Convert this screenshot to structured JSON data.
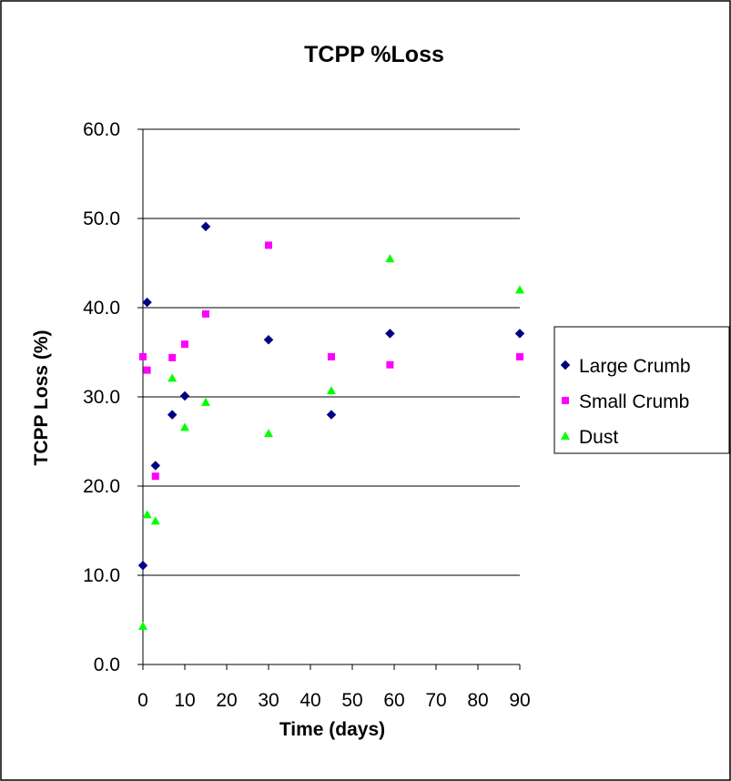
{
  "chart_data": {
    "type": "scatter",
    "title": "TCPP %Loss",
    "xlabel": "Time (days)",
    "ylabel": "TCPP Loss (%)",
    "xlim": [
      0,
      90
    ],
    "ylim": [
      0,
      60
    ],
    "xticks": [
      "0",
      "10",
      "20",
      "30",
      "40",
      "50",
      "60",
      "70",
      "80",
      "90"
    ],
    "yticks": [
      "0.0",
      "10.0",
      "20.0",
      "30.0",
      "40.0",
      "50.0",
      "60.0"
    ],
    "grid": "horizontal",
    "legend_position": "right",
    "series": [
      {
        "name": "Large Crumb",
        "marker": "diamond",
        "color": "#000080",
        "points": [
          [
            0,
            11.1
          ],
          [
            1,
            40.6
          ],
          [
            3,
            22.3
          ],
          [
            7,
            28.0
          ],
          [
            10,
            30.1
          ],
          [
            15,
            49.1
          ],
          [
            30,
            36.4
          ],
          [
            45,
            28.0
          ],
          [
            59,
            37.1
          ],
          [
            90,
            37.1
          ]
        ]
      },
      {
        "name": "Small Crumb",
        "marker": "square",
        "color": "#ff00ff",
        "points": [
          [
            0,
            34.5
          ],
          [
            1,
            33.0
          ],
          [
            3,
            21.1
          ],
          [
            7,
            34.4
          ],
          [
            10,
            35.9
          ],
          [
            15,
            39.3
          ],
          [
            30,
            47.0
          ],
          [
            45,
            34.5
          ],
          [
            59,
            33.6
          ],
          [
            90,
            34.5
          ]
        ]
      },
      {
        "name": "Dust",
        "marker": "triangle",
        "color": "#00ff00",
        "points": [
          [
            0,
            4.3
          ],
          [
            1,
            16.8
          ],
          [
            3,
            16.1
          ],
          [
            7,
            32.1
          ],
          [
            10,
            26.6
          ],
          [
            15,
            29.4
          ],
          [
            30,
            25.9
          ],
          [
            45,
            30.7
          ],
          [
            59,
            45.5
          ],
          [
            90,
            42.0
          ]
        ]
      }
    ]
  }
}
